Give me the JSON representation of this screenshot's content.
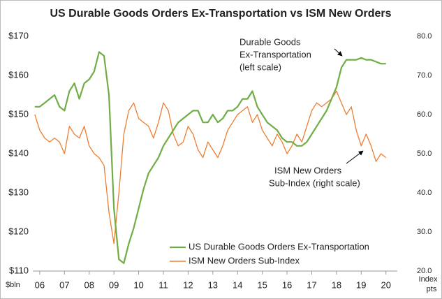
{
  "chart_data": {
    "type": "line",
    "title": "US Durable Goods Orders Ex-Transportation vs ISM New Orders",
    "y_label": "$bln",
    "y2_label": "Index pts",
    "x": [
      5.8,
      6.0,
      6.2,
      6.4,
      6.6,
      6.8,
      7.0,
      7.2,
      7.4,
      7.6,
      7.8,
      8.0,
      8.2,
      8.4,
      8.6,
      8.8,
      9.0,
      9.2,
      9.4,
      9.6,
      9.8,
      10.0,
      10.2,
      10.4,
      10.6,
      10.8,
      11.0,
      11.2,
      11.4,
      11.6,
      11.8,
      12.0,
      12.2,
      12.4,
      12.6,
      12.8,
      13.0,
      13.2,
      13.4,
      13.6,
      13.8,
      14.0,
      14.2,
      14.4,
      14.6,
      14.8,
      15.0,
      15.2,
      15.4,
      15.6,
      15.8,
      16.0,
      16.2,
      16.4,
      16.6,
      16.8,
      17.0,
      17.2,
      17.4,
      17.6,
      17.8,
      18.0,
      18.2,
      18.4,
      18.6,
      18.8,
      19.0,
      19.2,
      19.4,
      19.6,
      19.8,
      20.0
    ],
    "series": [
      {
        "name": "US Durable Goods Orders Ex-Transportation",
        "color": "#70ad47",
        "axis": "y",
        "values": [
          152,
          152,
          153,
          154,
          155,
          152,
          151,
          156,
          158,
          154,
          158,
          159,
          161,
          166,
          165,
          155,
          126,
          113,
          112,
          117,
          121,
          126,
          131,
          135,
          137,
          139,
          142,
          144,
          146,
          148,
          149,
          150,
          151,
          151,
          148,
          148,
          150,
          148,
          149,
          151,
          151,
          152,
          154,
          154,
          156,
          152,
          150,
          148,
          147,
          146,
          144,
          143,
          143,
          142,
          142,
          143,
          145,
          147,
          149,
          151,
          154,
          157,
          162,
          164,
          164,
          164,
          164.5,
          164,
          164,
          163.5,
          163,
          163
        ]
      },
      {
        "name": "ISM New Orders Sub-Index",
        "color": "#ed7d31",
        "axis": "y2",
        "values": [
          60,
          56,
          54,
          53,
          54,
          53,
          50,
          57,
          55,
          54,
          57,
          52,
          50,
          49,
          47,
          35,
          27,
          40,
          55,
          61,
          63,
          59,
          58,
          57,
          54,
          58,
          63,
          61,
          55,
          52,
          53,
          57,
          55,
          51,
          49,
          53,
          51,
          49,
          52,
          56,
          58,
          60,
          61,
          62,
          58,
          60,
          56,
          54,
          52,
          55,
          53,
          50,
          52,
          55,
          53,
          57,
          61,
          63,
          62,
          63,
          64,
          66,
          63,
          60,
          62,
          56,
          52,
          55,
          52,
          48,
          50,
          49
        ]
      }
    ],
    "xlim": [
      5.72,
      20.46
    ],
    "xticks": [
      {
        "value": 6,
        "label": "06"
      },
      {
        "value": 7,
        "label": "07"
      },
      {
        "value": 8,
        "label": "08"
      },
      {
        "value": 9,
        "label": "09"
      },
      10,
      11,
      12,
      13,
      14,
      15,
      16,
      17,
      18,
      19,
      20
    ],
    "ylim": [
      110,
      170
    ],
    "yticks": [
      {
        "value": 110,
        "label": "$110"
      },
      {
        "value": 120,
        "label": "$120"
      },
      {
        "value": 130,
        "label": "$130"
      },
      {
        "value": 140,
        "label": "$140"
      },
      {
        "value": 150,
        "label": "$150"
      },
      {
        "value": 160,
        "label": "$160"
      },
      {
        "value": 170,
        "label": "$170"
      }
    ],
    "y2lim": [
      20,
      80
    ],
    "y2ticks": [
      {
        "value": 20,
        "label": "20.0"
      },
      {
        "value": 30,
        "label": "30.0"
      },
      {
        "value": 40,
        "label": "40.0"
      },
      {
        "value": 50,
        "label": "50.0"
      },
      {
        "value": 60,
        "label": "60.0"
      },
      {
        "value": 70,
        "label": "70.0"
      },
      {
        "value": 80,
        "label": "80.0"
      }
    ],
    "annotations": [
      {
        "lines": [
          "Durable Goods",
          "Ex-Transportation",
          "(left scale)"
        ]
      },
      {
        "lines": [
          "ISM New Orders",
          "Sub-Index (right scale)"
        ]
      }
    ],
    "legend": "lower center"
  }
}
